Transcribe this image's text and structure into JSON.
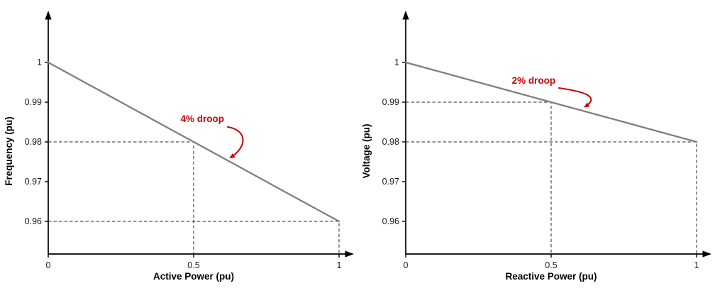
{
  "figure": {
    "background": "#ffffff",
    "axis_color": "#000000",
    "tick_label_color": "#1a1a1a",
    "dashed_guide_color": "#2a2a2a"
  },
  "chart_data": [
    {
      "type": "line",
      "title": "",
      "xlabel": "Active Power (pu)",
      "ylabel": "Frequency (pu)",
      "xlim": [
        0,
        1.04
      ],
      "ylim": [
        0.952,
        1.008
      ],
      "grid": false,
      "xticks": [
        {
          "value": 0,
          "label": "0"
        },
        {
          "value": 0.5,
          "label": "0.5"
        },
        {
          "value": 1,
          "label": "1"
        }
      ],
      "yticks": [
        {
          "value": 1,
          "label": "1"
        },
        {
          "value": 0.99,
          "label": "0.99"
        },
        {
          "value": 0.98,
          "label": "0.98"
        },
        {
          "value": 0.97,
          "label": "0.97"
        },
        {
          "value": 0.96,
          "label": "0.96"
        }
      ],
      "series": [
        {
          "name": "frequency-droop-line",
          "color": "#7f7f7f",
          "x": [
            0,
            1
          ],
          "y": [
            1,
            0.96
          ]
        }
      ],
      "dashed_guides": [
        {
          "x": 0.5,
          "y": 0.98
        },
        {
          "x": 1,
          "y": 0.96
        }
      ],
      "annotation": {
        "text": "4% droop",
        "color": "#cc0000",
        "text_at": [
          0.53,
          0.985
        ],
        "arrow_from": [
          0.615,
          0.9838
        ],
        "arrow_to": [
          0.625,
          0.976
        ]
      }
    },
    {
      "type": "line",
      "title": "",
      "xlabel": "Reactive Power (pu)",
      "ylabel": "Voltage (pu)",
      "xlim": [
        0,
        1.04
      ],
      "ylim": [
        0.952,
        1.008
      ],
      "grid": false,
      "xticks": [
        {
          "value": 0,
          "label": "0"
        },
        {
          "value": 0.5,
          "label": "0.5"
        },
        {
          "value": 1,
          "label": "1"
        }
      ],
      "yticks": [
        {
          "value": 1,
          "label": "1"
        },
        {
          "value": 0.99,
          "label": "0.99"
        },
        {
          "value": 0.98,
          "label": "0.98"
        },
        {
          "value": 0.97,
          "label": "0.97"
        },
        {
          "value": 0.96,
          "label": "0.96"
        }
      ],
      "series": [
        {
          "name": "voltage-droop-line",
          "color": "#7f7f7f",
          "x": [
            0,
            1
          ],
          "y": [
            1,
            0.98
          ]
        }
      ],
      "dashed_guides": [
        {
          "x": 0.5,
          "y": 0.99
        },
        {
          "x": 1,
          "y": 0.98
        }
      ],
      "annotation": {
        "text": "2% droop",
        "color": "#cc0000",
        "text_at": [
          0.44,
          0.9946
        ],
        "arrow_from": [
          0.525,
          0.9936
        ],
        "arrow_to": [
          0.615,
          0.9888
        ]
      }
    }
  ]
}
